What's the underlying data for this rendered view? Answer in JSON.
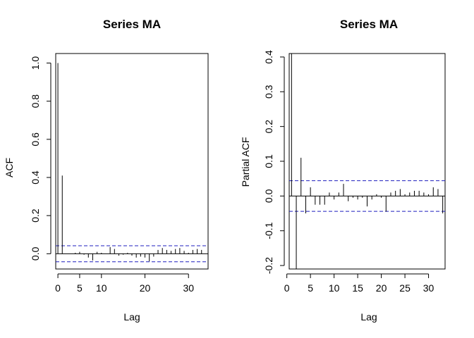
{
  "chart_data": [
    {
      "type": "bar",
      "title": "Series  MA",
      "xlabel": "Lag",
      "ylabel": "ACF",
      "xlim": [
        -0.5,
        34.5
      ],
      "ylim": [
        -0.08,
        1.05
      ],
      "xticks": [
        0,
        5,
        10,
        20,
        30
      ],
      "yticks": [
        0.0,
        0.2,
        0.4,
        0.6,
        0.8,
        1.0
      ],
      "ytick_labels": [
        "0.0",
        "0.2",
        "0.4",
        "0.6",
        "0.8",
        "1.0"
      ],
      "confidence_bound": 0.042,
      "line_color": "#1f1fbf",
      "x": [
        0,
        1,
        2,
        3,
        4,
        5,
        6,
        7,
        8,
        9,
        10,
        11,
        12,
        13,
        14,
        15,
        16,
        17,
        18,
        19,
        20,
        21,
        22,
        23,
        24,
        25,
        26,
        27,
        28,
        29,
        30,
        31,
        32,
        33
      ],
      "values": [
        1.0,
        0.41,
        0.0,
        0.0,
        0.005,
        0.01,
        -0.005,
        -0.02,
        -0.035,
        0.01,
        0.005,
        0.0,
        0.035,
        0.025,
        -0.01,
        -0.005,
        0.005,
        -0.01,
        -0.02,
        -0.015,
        -0.02,
        -0.04,
        -0.015,
        0.02,
        0.03,
        0.02,
        0.015,
        0.025,
        0.03,
        0.015,
        0.005,
        0.02,
        0.025,
        0.02
      ]
    },
    {
      "type": "bar",
      "title": "Series  MA",
      "xlabel": "Lag",
      "ylabel": "Partial ACF",
      "xlim": [
        0.5,
        33.5
      ],
      "ylim": [
        -0.21,
        0.41
      ],
      "xticks": [
        0,
        5,
        10,
        15,
        20,
        25,
        30
      ],
      "yticks": [
        -0.2,
        -0.1,
        0.0,
        0.1,
        0.2,
        0.3,
        0.4
      ],
      "ytick_labels": [
        "-0.2",
        "-0.1",
        "0.0",
        "0.1",
        "0.2",
        "0.3",
        "0.4"
      ],
      "confidence_bound": 0.044,
      "line_color": "#1f1fbf",
      "x": [
        1,
        2,
        3,
        4,
        5,
        6,
        7,
        8,
        9,
        10,
        11,
        12,
        13,
        14,
        15,
        16,
        17,
        18,
        19,
        20,
        21,
        22,
        23,
        24,
        25,
        26,
        27,
        28,
        29,
        30,
        31,
        32,
        33
      ],
      "values": [
        0.41,
        -0.21,
        0.11,
        -0.05,
        0.025,
        -0.025,
        -0.025,
        -0.025,
        0.01,
        -0.01,
        0.01,
        0.035,
        -0.015,
        -0.005,
        -0.01,
        -0.005,
        -0.03,
        -0.01,
        0.005,
        -0.005,
        -0.045,
        0.01,
        0.015,
        0.02,
        0.005,
        0.01,
        0.015,
        0.015,
        0.01,
        0.005,
        0.025,
        0.02,
        -0.05
      ]
    }
  ]
}
